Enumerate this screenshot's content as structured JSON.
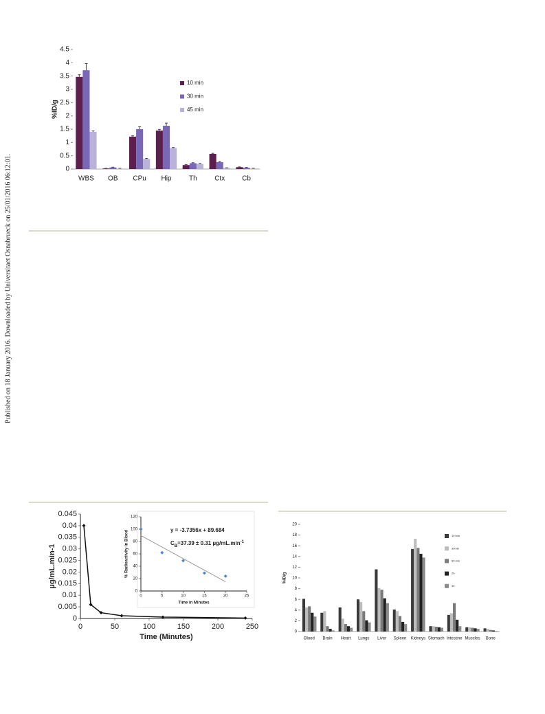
{
  "side_note": "Published on 18 January 2016. Downloaded by Universitaet Osnabrueck on 25/01/2016 06:12:01.",
  "chart_data": [
    {
      "type": "bar",
      "y_label": "%ID/g",
      "categories": [
        "WBS",
        "OB",
        "CPu",
        "Hip",
        "Th",
        "Ctx",
        "Cb"
      ],
      "series": [
        {
          "name": "10 min",
          "color": "#5c1f4e",
          "values": [
            3.47,
            0.02,
            1.22,
            1.45,
            0.15,
            0.57,
            0.07
          ],
          "errors": [
            0.08,
            0.01,
            0.03,
            0.04,
            0.02,
            0.02,
            0.01
          ]
        },
        {
          "name": "30 min",
          "color": "#7a68b6",
          "values": [
            3.72,
            0.06,
            1.5,
            1.63,
            0.22,
            0.26,
            0.05
          ],
          "errors": [
            0.25,
            0.01,
            0.09,
            0.1,
            0.02,
            0.02,
            0.01
          ]
        },
        {
          "name": "45 min",
          "color": "#bab2d8",
          "values": [
            1.4,
            0.02,
            0.38,
            0.79,
            0.19,
            0.04,
            0.02
          ],
          "errors": [
            0.04,
            0.01,
            0.02,
            0.02,
            0.02,
            0.01,
            0.01
          ]
        }
      ],
      "ylim": [
        0,
        4.5
      ],
      "yticks": [
        0,
        0.5,
        1,
        1.5,
        2,
        2.5,
        3,
        3.5,
        4,
        4.5
      ],
      "legend": "right"
    },
    {
      "type": "line",
      "x_label": "Time (Minutes)",
      "y_label": "µg/mL.min-1",
      "x": [
        5,
        15,
        30,
        60,
        120,
        240
      ],
      "values": [
        0.04,
        0.006,
        0.0025,
        0.0012,
        0.0006,
        0.0002
      ],
      "color": "#111111",
      "xlim": [
        0,
        250
      ],
      "xticks": [
        0,
        50,
        100,
        150,
        200,
        250
      ],
      "ylim": [
        0,
        0.045
      ],
      "yticks": [
        0,
        0.005,
        0.01,
        0.015,
        0.02,
        0.025,
        0.03,
        0.035,
        0.04,
        0.045
      ]
    },
    {
      "type": "scatter",
      "x_label": "Time in Minutes",
      "y_label": "% Radioactivity in Blood",
      "x": [
        0,
        5,
        10,
        15,
        20
      ],
      "values": [
        100,
        62,
        49,
        29,
        24
      ],
      "color": "#4f86c6",
      "trend": {
        "slope": -3.7356,
        "intercept": 89.684,
        "color": "#999999"
      },
      "annotations": [
        [
          "y = -3.7356x + 89.684"
        ],
        [
          "C",
          "B",
          "=37.39 ± 0.31 µg/mL.min",
          "-1"
        ]
      ],
      "xlim": [
        0,
        25
      ],
      "xticks": [
        0,
        5,
        10,
        15,
        20,
        25
      ],
      "ylim": [
        0,
        120
      ],
      "yticks": [
        0,
        20,
        40,
        60,
        80,
        100,
        120
      ]
    },
    {
      "type": "bar",
      "y_label": "%ID/g",
      "categories": [
        "Blood",
        "Brain",
        "Heart",
        "Lungs",
        "Liver",
        "Spleen",
        "Kidneys",
        "Stomach",
        "Intestine",
        "Muscles",
        "Bone"
      ],
      "series": [
        {
          "name": "10 min",
          "color": "#3a3a3a",
          "values": [
            6.1,
            3.5,
            4.5,
            6.0,
            11.6,
            4.1,
            15.4,
            1.0,
            3.1,
            0.8,
            0.6
          ]
        },
        {
          "name": "30min",
          "color": "#bdbdbd",
          "values": [
            4.5,
            3.8,
            2.4,
            5.5,
            8.1,
            3.8,
            17.3,
            1.0,
            3.4,
            0.8,
            0.5
          ]
        },
        {
          "name": "60 min",
          "color": "#7a7a7a",
          "values": [
            4.7,
            1.0,
            1.4,
            3.8,
            7.8,
            2.9,
            15.6,
            0.9,
            5.3,
            0.7,
            0.3
          ]
        },
        {
          "name": "2h",
          "color": "#222222",
          "values": [
            3.5,
            0.5,
            1.0,
            2.1,
            6.2,
            1.8,
            14.5,
            0.8,
            2.2,
            0.6,
            0.2
          ]
        },
        {
          "name": "4h",
          "color": "#8c8c8c",
          "values": [
            2.8,
            0.2,
            0.7,
            1.7,
            5.3,
            1.4,
            13.8,
            0.7,
            1.0,
            0.5,
            0.1
          ]
        }
      ],
      "ylim": [
        0,
        20
      ],
      "yticks": [
        0,
        2,
        4,
        6,
        8,
        10,
        12,
        14,
        16,
        18,
        20
      ],
      "legend": "right"
    }
  ]
}
